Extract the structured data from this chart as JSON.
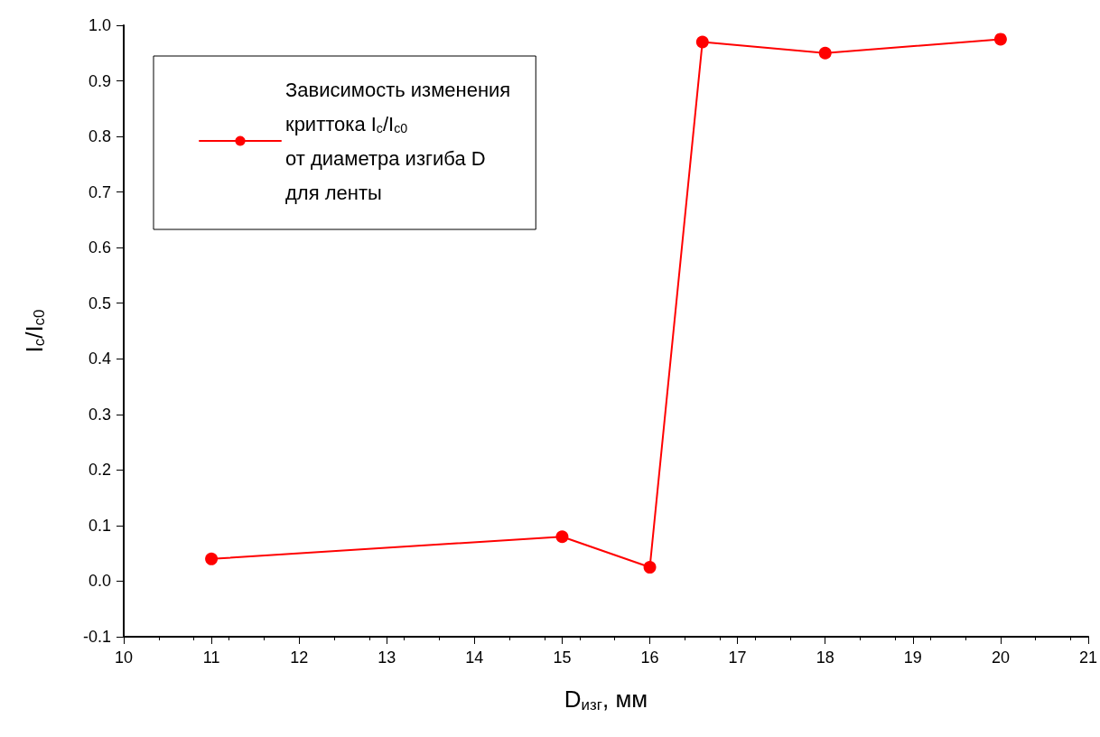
{
  "chart_data": {
    "type": "line",
    "xlabel": "D$_{изг}$, мм",
    "ylabel": "I$_{c}$/I$_{c0}$",
    "x": [
      11,
      15,
      16,
      16.6,
      18,
      20
    ],
    "series": [
      {
        "name": "Зависимость изменения\nкриттока I$_{c}$/I$_{c0}$\nот диаметра изгиба D\nдля ленты",
        "color": "#ff0000",
        "values": [
          0.04,
          0.08,
          0.025,
          0.97,
          0.95,
          0.975
        ]
      }
    ],
    "xlim": [
      10,
      21
    ],
    "xticks": [
      10,
      11,
      12,
      13,
      14,
      15,
      16,
      17,
      18,
      19,
      20,
      21
    ],
    "ylim": [
      -0.1,
      1.0
    ],
    "yticks": [
      -0.1,
      {
        "value": 0,
        "label": "0.0"
      },
      0.1,
      0.2,
      0.3,
      0.4,
      0.5,
      0.6,
      0.7,
      0.8,
      0.9,
      {
        "value": 1,
        "label": "1.0"
      }
    ],
    "grid": false,
    "legend": "top left",
    "marker": "circle",
    "line_style": "solid"
  }
}
